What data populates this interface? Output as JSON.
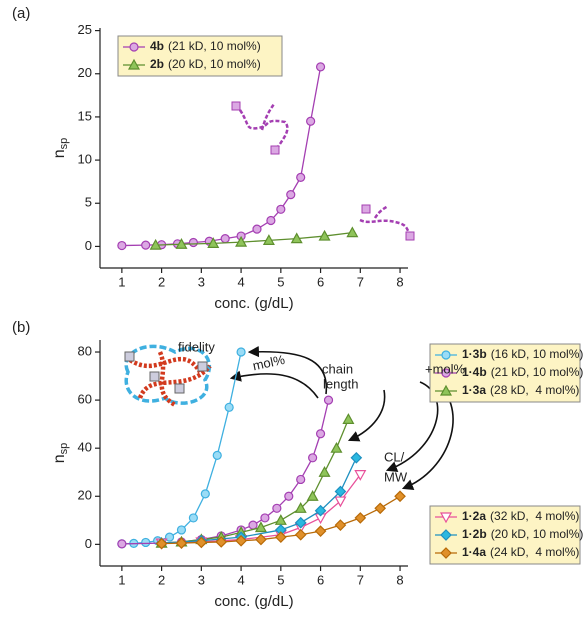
{
  "chart_data": [
    {
      "type": "line",
      "label": "(a)",
      "xlabel": "conc. (g/dL)",
      "ylabel": "n",
      "ylabel_subscript": "sp",
      "xlim": [
        0.45,
        8.2
      ],
      "ylim": [
        -2.5,
        25.3
      ],
      "xticks": [
        1,
        2,
        3,
        4,
        5,
        6,
        7,
        8
      ],
      "yticks": [
        0,
        5,
        10,
        15,
        20,
        25
      ],
      "series": [
        {
          "name": "4b",
          "detail": "(21 kD, 10 mol%)",
          "color": "#a43fb2",
          "fill": "#dba8e3",
          "marker": "circle",
          "x": [
            1.0,
            1.6,
            2.0,
            2.4,
            2.8,
            3.2,
            3.6,
            4.0,
            4.4,
            4.75,
            5.0,
            5.25,
            5.5,
            5.75,
            6.0
          ],
          "values": [
            0.1,
            0.15,
            0.2,
            0.3,
            0.45,
            0.6,
            0.9,
            1.2,
            2.0,
            3.0,
            4.3,
            6.0,
            8.0,
            14.5,
            20.8
          ]
        },
        {
          "name": "2b",
          "detail": "(20 kD, 10 mol%)",
          "color": "#5e8f2e",
          "fill": "#8fc45a",
          "marker": "triangle",
          "x": [
            1.85,
            2.5,
            3.3,
            4.0,
            4.7,
            5.4,
            6.1,
            6.8
          ],
          "values": [
            0.15,
            0.25,
            0.35,
            0.5,
            0.7,
            0.9,
            1.2,
            1.6
          ]
        }
      ]
    },
    {
      "type": "line",
      "label": "(b)",
      "xlabel": "conc. (g/dL)",
      "ylabel": "n",
      "ylabel_subscript": "sp",
      "xlim": [
        0.45,
        8.2
      ],
      "ylim": [
        -9,
        85
      ],
      "xticks": [
        1,
        2,
        3,
        4,
        5,
        6,
        7,
        8
      ],
      "yticks": [
        0,
        20,
        40,
        60,
        80
      ],
      "annotations": [
        "fidelity",
        "mol%",
        "chain",
        "length",
        "+mol%",
        "CL/",
        "MW"
      ],
      "series": [
        {
          "name": "1·3b",
          "detail": "(16 kD, 10 mol%)",
          "color": "#3fb0e0",
          "fill": "#9adcf6",
          "marker": "circle",
          "x": [
            1.0,
            1.3,
            1.6,
            1.9,
            2.2,
            2.5,
            2.8,
            3.1,
            3.4,
            3.7,
            4.0
          ],
          "values": [
            0.2,
            0.4,
            0.8,
            1.5,
            3,
            6,
            11,
            21,
            37,
            57,
            80
          ]
        },
        {
          "name": "1·4b",
          "detail": "(21 kD, 10 mol%)",
          "color": "#a43fb2",
          "fill": "#dba8e3",
          "marker": "circle",
          "x": [
            1.0,
            2.0,
            2.5,
            3.0,
            3.5,
            4.0,
            4.3,
            4.6,
            4.9,
            5.2,
            5.5,
            5.8,
            6.0,
            6.2
          ],
          "values": [
            0.2,
            0.5,
            1,
            2,
            3.5,
            6,
            8,
            11,
            15,
            20,
            27,
            36,
            46,
            60
          ]
        },
        {
          "name": "1·3a",
          "detail": "(28 kD,  4 mol%)",
          "color": "#5e8f2e",
          "fill": "#8fc45a",
          "marker": "triangle",
          "x": [
            2.0,
            2.5,
            3.0,
            3.5,
            4.0,
            4.5,
            5.0,
            5.5,
            5.8,
            6.1,
            6.4,
            6.7
          ],
          "values": [
            0.5,
            1,
            2,
            3,
            5,
            7,
            10,
            15,
            20,
            30,
            40,
            52
          ]
        },
        {
          "name": "1·2a",
          "detail": "(32 kD,  4 mol%)",
          "color": "#e8509a",
          "fill": "#ffffff",
          "marker": "triangle-down",
          "x": [
            2.0,
            3.0,
            4.0,
            5.0,
            5.5,
            6.0,
            6.5,
            7.0
          ],
          "values": [
            0.5,
            1,
            2,
            4,
            7,
            11,
            18,
            29
          ]
        },
        {
          "name": "1·2b",
          "detail": "(20 kD, 10 mol%)",
          "color": "#1e90c0",
          "fill": "#2ab8e0",
          "marker": "diamond",
          "x": [
            2.0,
            3.0,
            4.0,
            5.0,
            5.5,
            6.0,
            6.5,
            6.9
          ],
          "values": [
            0.5,
            1.5,
            3,
            6,
            9,
            14,
            22,
            36
          ]
        },
        {
          "name": "1·4a",
          "detail": "(24 kD,  4 mol%)",
          "color": "#b86a08",
          "fill": "#e0902a",
          "marker": "diamond",
          "x": [
            2.0,
            2.5,
            3.0,
            3.5,
            4.0,
            4.5,
            5.0,
            5.5,
            6.0,
            6.5,
            7.0,
            7.5,
            8.0
          ],
          "values": [
            0.3,
            0.5,
            0.8,
            1,
            1.5,
            2,
            3,
            4,
            5.5,
            8,
            11,
            15,
            20
          ]
        }
      ]
    }
  ]
}
